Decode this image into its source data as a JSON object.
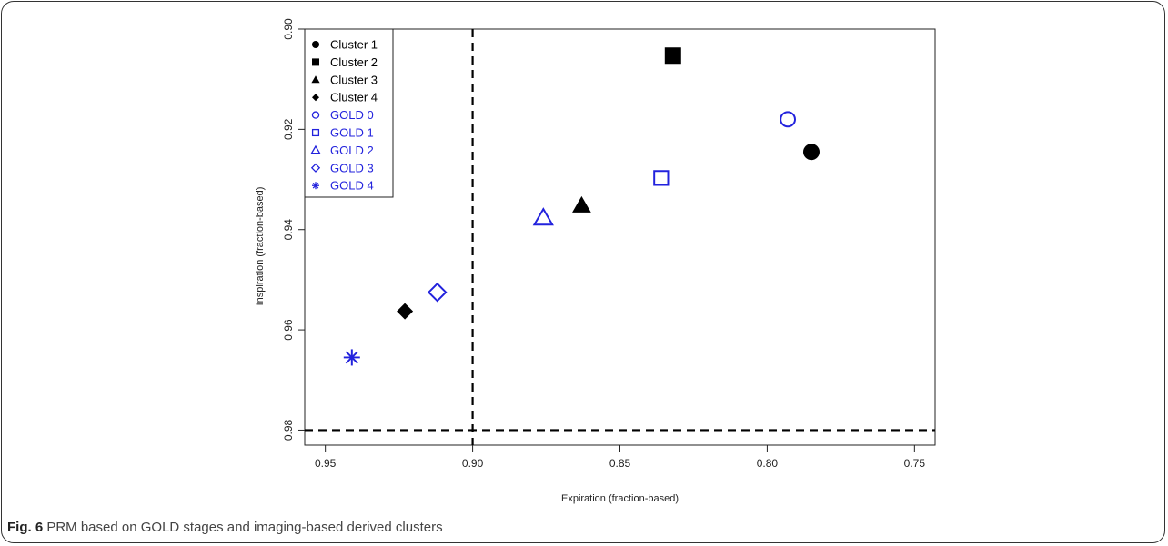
{
  "caption": {
    "label": "Fig. 6",
    "text": "PRM based on GOLD stages and imaging-based derived clusters"
  },
  "colors": {
    "black": "#000000",
    "blue": "#2222dd"
  },
  "chart_data": {
    "type": "scatter",
    "title": "",
    "xlabel": "Expiration (fraction-based)",
    "ylabel": "Inspiration (fraction-based)",
    "xlim": [
      0.957,
      0.743
    ],
    "ylim": [
      0.9,
      0.983
    ],
    "x_reversed": true,
    "y_reversed": true,
    "x_ticks": [
      "0.95",
      "0.90",
      "0.85",
      "0.80",
      "0.75"
    ],
    "x_tick_values": [
      0.95,
      0.9,
      0.85,
      0.8,
      0.75
    ],
    "y_ticks": [
      "0.90",
      "0.92",
      "0.94",
      "0.96",
      "0.98"
    ],
    "y_tick_values": [
      0.9,
      0.92,
      0.94,
      0.96,
      0.98
    ],
    "reference_lines": [
      {
        "orientation": "vertical",
        "value": 0.9,
        "style": "dashed"
      },
      {
        "orientation": "horizontal",
        "value": 0.98,
        "style": "dashed"
      }
    ],
    "legend_position": "top-left",
    "series": [
      {
        "name": "Cluster 1",
        "marker": "filled-circle",
        "color": "#000000",
        "x": 0.785,
        "y": 0.9245
      },
      {
        "name": "Cluster 2",
        "marker": "filled-square",
        "color": "#000000",
        "x": 0.832,
        "y": 0.9053
      },
      {
        "name": "Cluster 3",
        "marker": "filled-triangle",
        "color": "#000000",
        "x": 0.863,
        "y": 0.9352
      },
      {
        "name": "Cluster 4",
        "marker": "filled-diamond",
        "color": "#000000",
        "x": 0.923,
        "y": 0.9563
      },
      {
        "name": "GOLD 0",
        "marker": "open-circle",
        "color": "#2222dd",
        "x": 0.793,
        "y": 0.918
      },
      {
        "name": "GOLD 1",
        "marker": "open-square",
        "color": "#2222dd",
        "x": 0.836,
        "y": 0.9297
      },
      {
        "name": "GOLD 2",
        "marker": "open-triangle",
        "color": "#2222dd",
        "x": 0.876,
        "y": 0.9377
      },
      {
        "name": "GOLD 3",
        "marker": "open-diamond",
        "color": "#2222dd",
        "x": 0.912,
        "y": 0.9525
      },
      {
        "name": "GOLD 4",
        "marker": "asterisk",
        "color": "#2222dd",
        "x": 0.941,
        "y": 0.9655
      }
    ]
  }
}
